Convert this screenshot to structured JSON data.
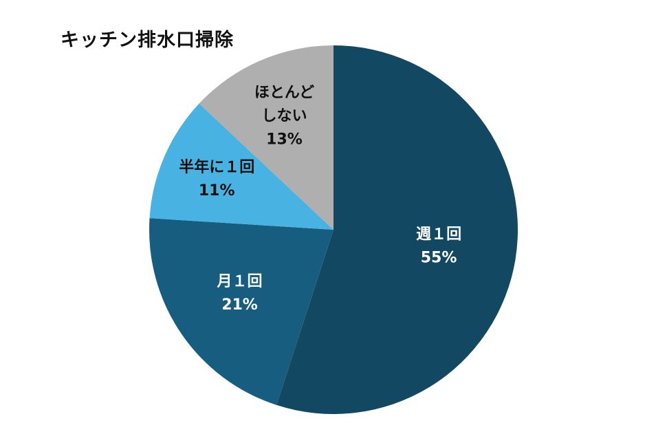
{
  "chart_data": {
    "type": "pie",
    "title": "キッチン排水口掃除",
    "categories": [
      "週１回",
      "月１回",
      "半年に１回",
      "ほとんどしない"
    ],
    "values": [
      55,
      21,
      11,
      13
    ],
    "value_labels": [
      "55%",
      "21%",
      "11%",
      "13%"
    ],
    "label_lines": [
      [
        "週１回"
      ],
      [
        "月１回"
      ],
      [
        "半年に１回"
      ],
      [
        "ほとんど",
        "しない"
      ]
    ],
    "colors": [
      "#124861",
      "#165d7f",
      "#48b3e2",
      "#afafaf"
    ],
    "label_colors": [
      "#ffffff",
      "#ffffff",
      "#111111",
      "#111111"
    ],
    "start_angle": "12 o'clock",
    "direction": "clockwise",
    "legend": "none"
  }
}
